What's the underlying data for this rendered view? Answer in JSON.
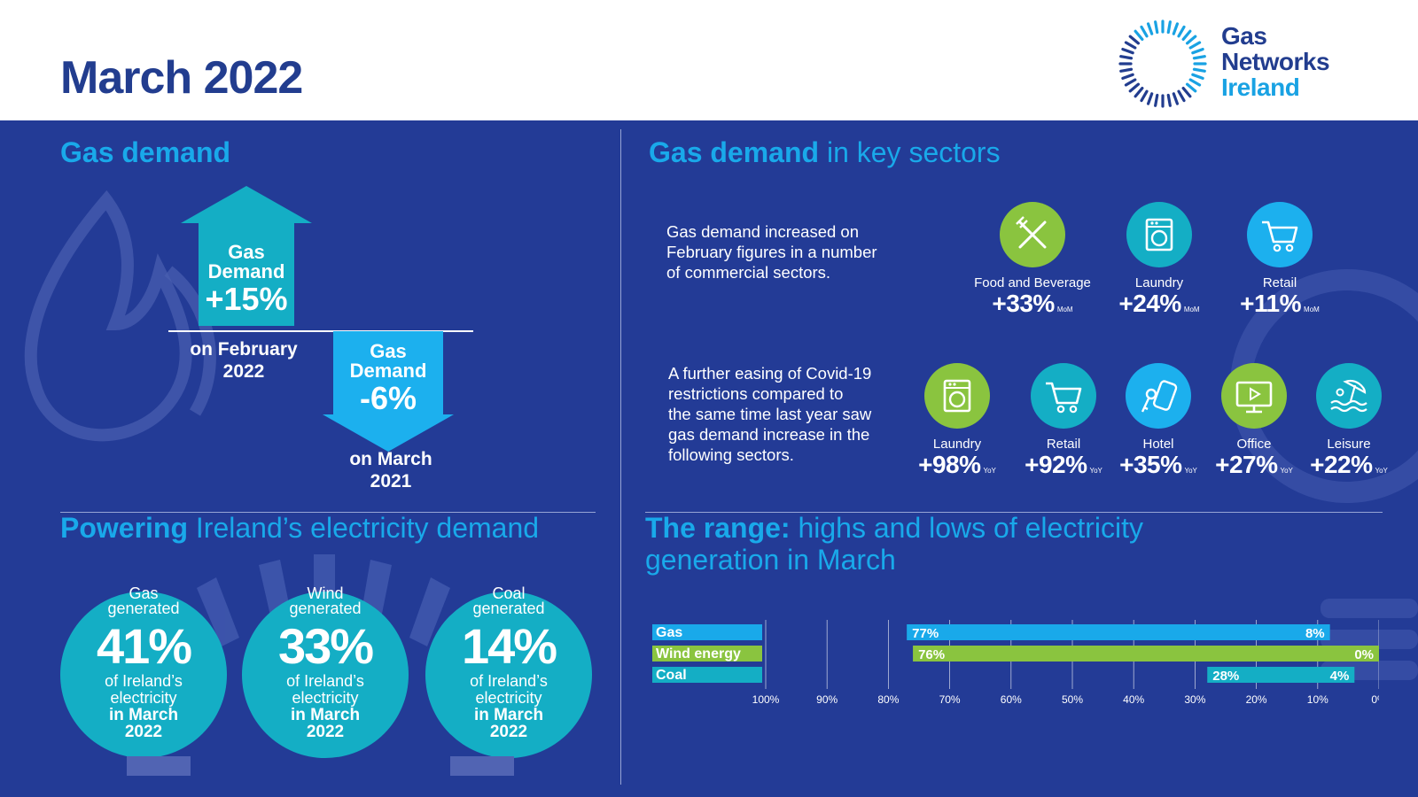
{
  "header": {
    "title": "March 2022",
    "logo": {
      "line1": "Gas",
      "line2": "Networks",
      "line3": "Ireland"
    }
  },
  "colors": {
    "navy": "#223d8f",
    "panel": "#233b96",
    "cyan": "#19a9ea",
    "teal": "#14aec5",
    "green": "#8ac43f",
    "lightblue": "#1cb0ee"
  },
  "gas_demand": {
    "title_bold": "Gas demand",
    "up": {
      "label": "Gas Demand",
      "label1": "Gas",
      "label2": "Demand",
      "value": "+15%",
      "caption1": "on February",
      "caption2": "2022"
    },
    "down": {
      "label1": "Gas",
      "label2": "Demand",
      "value": "-6%",
      "caption1": "on March",
      "caption2": "2021"
    }
  },
  "sectors": {
    "title_bold": "Gas demand",
    "title_light": " in key sectors",
    "mom_intro": [
      "Gas demand increased on",
      "February figures in a number",
      "of commercial sectors."
    ],
    "mom": [
      {
        "name": "Food and Beverage",
        "value": "+33%",
        "unit": "MoM",
        "icon": "cutlery-icon",
        "color": "#8ac43f"
      },
      {
        "name": "Laundry",
        "value": "+24%",
        "unit": "MoM",
        "icon": "washing-machine-icon",
        "color": "#14aec5"
      },
      {
        "name": "Retail",
        "value": "+11%",
        "unit": "MoM",
        "icon": "shopping-cart-icon",
        "color": "#1cb0ee"
      }
    ],
    "yoy_intro": [
      "A further easing of Covid-19",
      "restrictions compared to",
      "the same time last year saw",
      "gas demand increase in the",
      "following sectors."
    ],
    "yoy": [
      {
        "name": "Laundry",
        "value": "+98%",
        "unit": "YoY",
        "icon": "washing-machine-icon",
        "color": "#8ac43f"
      },
      {
        "name": "Retail",
        "value": "+92%",
        "unit": "YoY",
        "icon": "shopping-cart-icon",
        "color": "#14aec5"
      },
      {
        "name": "Hotel",
        "value": "+35%",
        "unit": "YoY",
        "icon": "hotel-key-icon",
        "color": "#1cb0ee"
      },
      {
        "name": "Office",
        "value": "+27%",
        "unit": "YoY",
        "icon": "monitor-icon",
        "color": "#8ac43f"
      },
      {
        "name": "Leisure",
        "value": "+22%",
        "unit": "YoY",
        "icon": "pool-umbrella-icon",
        "color": "#14aec5"
      }
    ]
  },
  "powering": {
    "title_bold": "Powering",
    "title_light": " Ireland’s electricity demand",
    "circles": [
      {
        "top1": "Gas",
        "top2": "generated",
        "value": "41%",
        "sub1": "of Ireland’s",
        "sub2": "electricity",
        "b1": "in March",
        "b2": "2022"
      },
      {
        "top1": "Wind",
        "top2": "generated",
        "value": "33%",
        "sub1": "of Ireland’s",
        "sub2": "electricity",
        "b1": "in March",
        "b2": "2022"
      },
      {
        "top1": "Coal",
        "top2": "generated",
        "value": "14%",
        "sub1": "of Ireland’s",
        "sub2": "electricity",
        "b1": "in March",
        "b2": "2022"
      }
    ]
  },
  "range": {
    "title_bold": "The range:",
    "title_light1": " highs and lows of electricity",
    "title_light2": "generation in March"
  },
  "chart_data": {
    "type": "bar",
    "title": "The range: highs and lows of electricity generation in March",
    "categories": [
      "Gas",
      "Wind energy",
      "Coal"
    ],
    "series": [
      {
        "name": "High",
        "values": [
          77,
          76,
          28
        ]
      },
      {
        "name": "Low",
        "values": [
          8,
          0,
          4
        ]
      }
    ],
    "high_labels": [
      "77%",
      "76%",
      "28%"
    ],
    "low_labels": [
      "8%",
      "0%",
      "4%"
    ],
    "colors": [
      "#19a9ea",
      "#8ac43f",
      "#14aec5"
    ],
    "xlim": [
      100,
      0
    ],
    "xticks": [
      "100%",
      "90%",
      "80%",
      "70%",
      "60%",
      "50%",
      "40%",
      "30%",
      "20%",
      "10%",
      "0%"
    ],
    "xlabel": "",
    "ylabel": "",
    "grid": true
  }
}
